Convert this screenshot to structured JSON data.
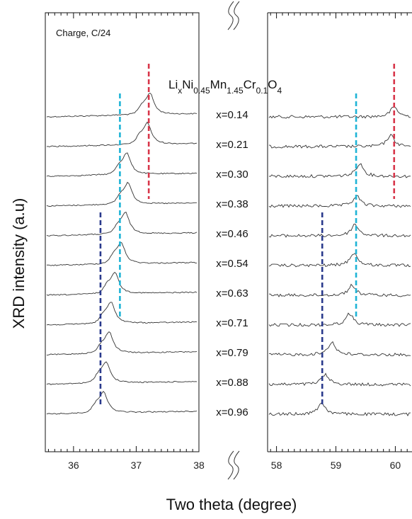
{
  "chart_data": {
    "type": "line",
    "annotation": "Charge, C/24",
    "formula": {
      "parts": [
        {
          "t": "Li",
          "sub": false
        },
        {
          "t": "x",
          "sub": true
        },
        {
          "t": "Ni",
          "sub": false
        },
        {
          "t": "0.45",
          "sub": true
        },
        {
          "t": "Mn",
          "sub": false
        },
        {
          "t": "1.45",
          "sub": true
        },
        {
          "t": "Cr",
          "sub": false
        },
        {
          "t": "0.1",
          "sub": true
        },
        {
          "t": "O",
          "sub": false
        },
        {
          "t": "4",
          "sub": true
        }
      ]
    },
    "xlabel": "Two theta (degree)",
    "ylabel": "XRD intensity (a.u)",
    "panels": [
      {
        "xlim": [
          35.55,
          38.0
        ],
        "ticks": [
          36,
          37,
          38
        ],
        "tick_labels": [
          "36",
          "37",
          "38"
        ]
      },
      {
        "xlim": [
          57.85,
          60.4
        ],
        "ticks": [
          58,
          59,
          60
        ],
        "tick_labels": [
          "58",
          "59",
          "60"
        ]
      }
    ],
    "series": [
      {
        "name": "x=0.14",
        "peak_left": 37.22,
        "peak_right": 59.98
      },
      {
        "name": "x=0.21",
        "peak_left": 37.18,
        "peak_right": 59.92
      },
      {
        "name": "x=0.30",
        "peak_left": 36.85,
        "peak_right": 59.4
      },
      {
        "name": "x=0.38",
        "peak_left": 36.87,
        "peak_right": 59.35
      },
      {
        "name": "x=0.46",
        "peak_left": 36.83,
        "peak_right": 59.32
      },
      {
        "name": "x=0.54",
        "peak_left": 36.76,
        "peak_right": 59.3
      },
      {
        "name": "x=0.63",
        "peak_left": 36.66,
        "peak_right": 59.27
      },
      {
        "name": "x=0.71",
        "peak_left": 36.6,
        "peak_right": 59.23
      },
      {
        "name": "x=0.79",
        "peak_left": 36.57,
        "peak_right": 58.93
      },
      {
        "name": "x=0.88",
        "peak_left": 36.52,
        "peak_right": 58.82
      },
      {
        "name": "x=0.96",
        "peak_left": 36.48,
        "peak_right": 58.76
      }
    ],
    "reference_lines": [
      {
        "panel": 0,
        "x": 37.2,
        "from": "x=0.14",
        "to": "x=0.38",
        "color": "#d8364a"
      },
      {
        "panel": 0,
        "x": 36.74,
        "from": "x=0.21",
        "to": "x=0.71",
        "color": "#1fb4d6"
      },
      {
        "panel": 0,
        "x": 36.43,
        "from": "x=0.54",
        "to": "x=0.96",
        "color": "#2a3a8c"
      },
      {
        "panel": 1,
        "x": 59.98,
        "from": "x=0.14",
        "to": "x=0.38",
        "color": "#d8364a"
      },
      {
        "panel": 1,
        "x": 59.34,
        "from": "x=0.21",
        "to": "x=0.71",
        "color": "#1fb4d6"
      },
      {
        "panel": 1,
        "x": 58.77,
        "from": "x=0.54",
        "to": "x=0.96",
        "color": "#2a3a8c"
      }
    ],
    "grid": false
  }
}
